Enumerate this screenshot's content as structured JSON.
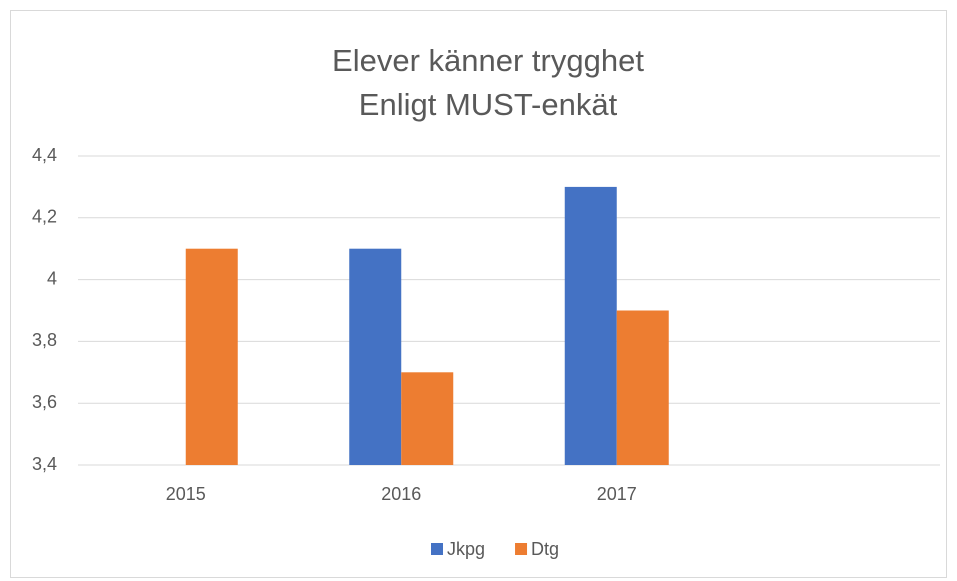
{
  "chart_data": {
    "type": "bar",
    "title": "Elever känner trygghet",
    "subtitle": "Enligt MUST-enkät",
    "categories": [
      "2015",
      "2016",
      "2017",
      null
    ],
    "series": [
      {
        "name": "Jkpg",
        "color": "#4472c4",
        "values": [
          null,
          4.1,
          4.3,
          null
        ]
      },
      {
        "name": "Dtg",
        "color": "#ed7d31",
        "values": [
          4.1,
          3.7,
          3.9,
          null
        ]
      }
    ],
    "ylim": [
      3.4,
      4.4
    ],
    "yticks": [
      {
        "value": 3.4,
        "label": "3,4"
      },
      {
        "value": 3.6,
        "label": "3,6"
      },
      {
        "value": 3.8,
        "label": "3,8"
      },
      4,
      {
        "value": 4.2,
        "label": "4,2"
      },
      {
        "value": 4.4,
        "label": "4,4"
      }
    ],
    "grid": true,
    "legend": "bottom"
  }
}
